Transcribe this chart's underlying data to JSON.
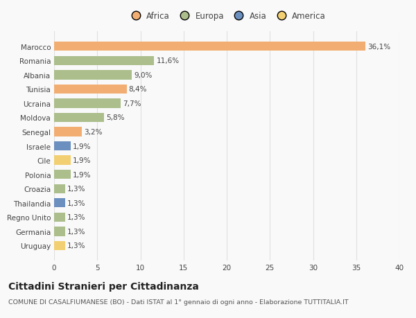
{
  "categories": [
    "Marocco",
    "Romania",
    "Albania",
    "Tunisia",
    "Ucraina",
    "Moldova",
    "Senegal",
    "Israele",
    "Cile",
    "Polonia",
    "Croazia",
    "Thailandia",
    "Regno Unito",
    "Germania",
    "Uruguay"
  ],
  "values": [
    36.1,
    11.6,
    9.0,
    8.4,
    7.7,
    5.8,
    3.2,
    1.9,
    1.9,
    1.9,
    1.3,
    1.3,
    1.3,
    1.3,
    1.3
  ],
  "labels": [
    "36,1%",
    "11,6%",
    "9,0%",
    "8,4%",
    "7,7%",
    "5,8%",
    "3,2%",
    "1,9%",
    "1,9%",
    "1,9%",
    "1,3%",
    "1,3%",
    "1,3%",
    "1,3%",
    "1,3%"
  ],
  "continent": [
    "Africa",
    "Europa",
    "Europa",
    "Africa",
    "Europa",
    "Europa",
    "Africa",
    "Asia",
    "America",
    "Europa",
    "Europa",
    "Asia",
    "Europa",
    "Europa",
    "America"
  ],
  "colors": {
    "Africa": "#F2AE72",
    "Europa": "#ABBE8B",
    "Asia": "#6B8FBF",
    "America": "#F2CF72"
  },
  "legend_items": [
    "Africa",
    "Europa",
    "Asia",
    "America"
  ],
  "legend_colors": [
    "#F2AE72",
    "#ABBE8B",
    "#6B8FBF",
    "#F2CF72"
  ],
  "title": "Cittadini Stranieri per Cittadinanza",
  "subtitle": "COMUNE DI CASALFIUMANESE (BO) - Dati ISTAT al 1° gennaio di ogni anno - Elaborazione TUTTITALIA.IT",
  "xlim": [
    0,
    40
  ],
  "xticks": [
    0,
    5,
    10,
    15,
    20,
    25,
    30,
    35,
    40
  ],
  "background_color": "#f9f9f9",
  "grid_color": "#e0e0e0",
  "bar_height": 0.65,
  "label_fontsize": 7.5,
  "title_fontsize": 10,
  "subtitle_fontsize": 6.8,
  "tick_fontsize": 7.5,
  "legend_fontsize": 8.5
}
